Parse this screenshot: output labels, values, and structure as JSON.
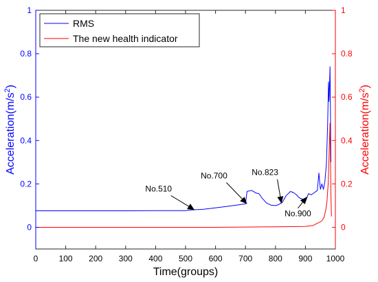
{
  "chart_data": {
    "type": "line",
    "xlabel": "Time(groups)",
    "ylabel_left": "Acceleration(m/s",
    "ylabel_right": "Acceleration(m/s",
    "ylabel_exponent": "2",
    "ylabel_suffix": ")",
    "xlim": [
      0,
      1000
    ],
    "ylim_left": [
      -0.1,
      1
    ],
    "ylim_right": [
      -0.1,
      1
    ],
    "x_ticks": [
      0,
      100,
      200,
      300,
      400,
      500,
      600,
      700,
      800,
      900,
      1000
    ],
    "x_tick_labels": [
      "0",
      "100",
      "200",
      "300",
      "400",
      "500",
      "600",
      "700",
      "800",
      "900",
      "1000"
    ],
    "y_ticks": [
      0,
      0.2,
      0.4,
      0.6,
      0.8,
      1
    ],
    "y_tick_labels": [
      "0",
      "0.2",
      "0.4",
      "0.6",
      "0.8",
      "1"
    ],
    "grid": false,
    "legend_position": "top-left",
    "series": [
      {
        "name": "RMS",
        "color": "#0000ff",
        "axis": "left",
        "points": [
          [
            0,
            0.076
          ],
          [
            100,
            0.076
          ],
          [
            200,
            0.076
          ],
          [
            300,
            0.076
          ],
          [
            400,
            0.077
          ],
          [
            500,
            0.077
          ],
          [
            510,
            0.079
          ],
          [
            560,
            0.083
          ],
          [
            620,
            0.093
          ],
          [
            680,
            0.104
          ],
          [
            700,
            0.108
          ],
          [
            705,
            0.165
          ],
          [
            720,
            0.17
          ],
          [
            735,
            0.158
          ],
          [
            745,
            0.155
          ],
          [
            755,
            0.135
          ],
          [
            770,
            0.112
          ],
          [
            785,
            0.102
          ],
          [
            800,
            0.1
          ],
          [
            810,
            0.104
          ],
          [
            823,
            0.115
          ],
          [
            835,
            0.145
          ],
          [
            850,
            0.165
          ],
          [
            860,
            0.16
          ],
          [
            870,
            0.15
          ],
          [
            880,
            0.135
          ],
          [
            890,
            0.13
          ],
          [
            900,
            0.118
          ],
          [
            910,
            0.155
          ],
          [
            920,
            0.15
          ],
          [
            930,
            0.16
          ],
          [
            940,
            0.17
          ],
          [
            945,
            0.25
          ],
          [
            950,
            0.175
          ],
          [
            955,
            0.2
          ],
          [
            960,
            0.175
          ],
          [
            965,
            0.21
          ],
          [
            970,
            0.29
          ],
          [
            974,
            0.47
          ],
          [
            977,
            0.67
          ],
          [
            979,
            0.58
          ],
          [
            982,
            0.74
          ],
          [
            985,
            0.3
          ]
        ]
      },
      {
        "name": "The new health indicator",
        "color": "#ff0000",
        "axis": "right",
        "points": [
          [
            0,
            0.0
          ],
          [
            100,
            0.0
          ],
          [
            200,
            0.0
          ],
          [
            300,
            0.0
          ],
          [
            400,
            0.0
          ],
          [
            500,
            0.0
          ],
          [
            600,
            0.0
          ],
          [
            700,
            0.001
          ],
          [
            800,
            0.002
          ],
          [
            850,
            0.003
          ],
          [
            900,
            0.004
          ],
          [
            925,
            0.008
          ],
          [
            935,
            0.015
          ],
          [
            945,
            0.022
          ],
          [
            955,
            0.03
          ],
          [
            962,
            0.045
          ],
          [
            968,
            0.08
          ],
          [
            972,
            0.12
          ],
          [
            976,
            0.2
          ],
          [
            979,
            0.33
          ],
          [
            982,
            0.48
          ],
          [
            985,
            0.15
          ],
          [
            987,
            0.05
          ]
        ]
      }
    ],
    "annotations": [
      {
        "text": "No.510",
        "x": 530,
        "y": 0.08,
        "label_x": 410,
        "label_y": 0.165
      },
      {
        "text": "No.700",
        "x": 705,
        "y": 0.108,
        "label_x": 595,
        "label_y": 0.225
      },
      {
        "text": "No.823",
        "x": 820,
        "y": 0.11,
        "label_x": 765,
        "label_y": 0.24
      },
      {
        "text": "No.900",
        "x": 905,
        "y": 0.14,
        "label_x": 875,
        "label_y": 0.05
      }
    ]
  }
}
